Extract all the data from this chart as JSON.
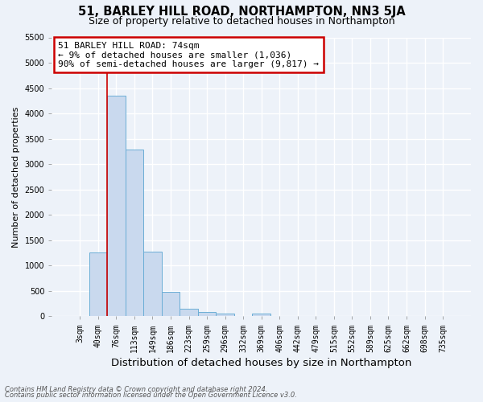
{
  "title": "51, BARLEY HILL ROAD, NORTHAMPTON, NN3 5JA",
  "subtitle": "Size of property relative to detached houses in Northampton",
  "xlabel": "Distribution of detached houses by size in Northampton",
  "ylabel": "Number of detached properties",
  "footnote1": "Contains HM Land Registry data © Crown copyright and database right 2024.",
  "footnote2": "Contains public sector information licensed under the Open Government Licence v3.0.",
  "bar_labels": [
    "3sqm",
    "40sqm",
    "76sqm",
    "113sqm",
    "149sqm",
    "186sqm",
    "223sqm",
    "259sqm",
    "296sqm",
    "332sqm",
    "369sqm",
    "406sqm",
    "442sqm",
    "479sqm",
    "515sqm",
    "552sqm",
    "589sqm",
    "625sqm",
    "662sqm",
    "698sqm",
    "735sqm"
  ],
  "bar_values": [
    0,
    1250,
    4350,
    3280,
    1280,
    480,
    155,
    90,
    55,
    0,
    55,
    0,
    0,
    0,
    0,
    0,
    0,
    0,
    0,
    0,
    0
  ],
  "bar_color": "#c9d9ee",
  "bar_edge_color": "#6baed6",
  "bar_width": 1.0,
  "ylim": [
    0,
    5500
  ],
  "yticks": [
    0,
    500,
    1000,
    1500,
    2000,
    2500,
    3000,
    3500,
    4000,
    4500,
    5000,
    5500
  ],
  "property_line_x": 2.0,
  "property_line_color": "#cc0000",
  "annotation_box_text": "51 BARLEY HILL ROAD: 74sqm\n← 9% of detached houses are smaller (1,036)\n90% of semi-detached houses are larger (9,817) →",
  "annotation_box_color": "#cc0000",
  "bg_color": "#edf2f9",
  "plot_bg_color": "#edf2f9",
  "grid_color": "#ffffff",
  "title_fontsize": 10.5,
  "subtitle_fontsize": 9,
  "xlabel_fontsize": 9.5,
  "ylabel_fontsize": 8,
  "tick_fontsize": 7,
  "annotation_fontsize": 8,
  "footnote_fontsize": 6
}
